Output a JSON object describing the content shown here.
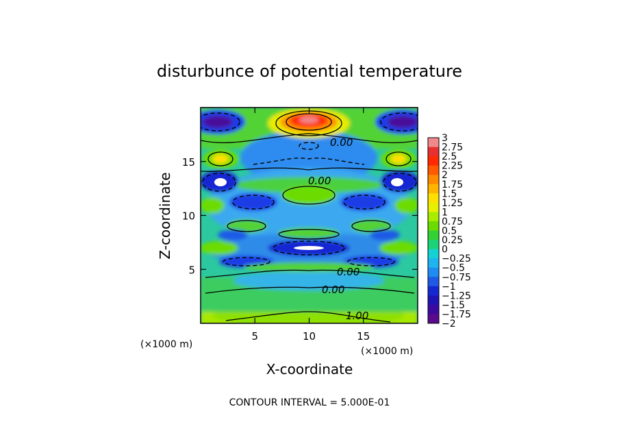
{
  "chart_data": {
    "type": "heatmap",
    "title": "disturbunce of potential temperature",
    "xlabel": "X-coordinate",
    "ylabel": "Z-coordinate",
    "x_unit": "(×1000 m)",
    "y_unit": "(×1000 m)",
    "xlim": [
      0,
      20
    ],
    "ylim": [
      0,
      20
    ],
    "x_ticks": [
      "5",
      "10",
      "15"
    ],
    "y_ticks": [
      "5",
      "10",
      "15"
    ],
    "colorbar": {
      "min": -2,
      "max": 3,
      "labels": [
        "3",
        "2.75",
        "2.5",
        "2.25",
        "2",
        "1.75",
        "1.5",
        "1.25",
        "1",
        "0.75",
        "0.5",
        "0.25",
        "0",
        "−0.25",
        "−0.5",
        "−0.75",
        "−1",
        "−1.25",
        "−1.5",
        "−1.75",
        "−2"
      ],
      "colors": [
        "#f08a8a",
        "#e83030",
        "#ff2a00",
        "#ff5a00",
        "#ff8a00",
        "#ffb400",
        "#ffe000",
        "#e8f000",
        "#a8ec00",
        "#6cdc00",
        "#32d232",
        "#1ed278",
        "#14d2d2",
        "#1eb4f0",
        "#1e8cf0",
        "#1e5ae6",
        "#1428d2",
        "#1e14b4",
        "#3c0aa0",
        "#5a0a8c"
      ]
    },
    "contour_labels": [
      "0.00",
      "0.00",
      "0.00",
      "0.00",
      "1.00"
    ],
    "legend": "right",
    "footer": "CONTOUR INTERVAL = 5.000E-01"
  }
}
